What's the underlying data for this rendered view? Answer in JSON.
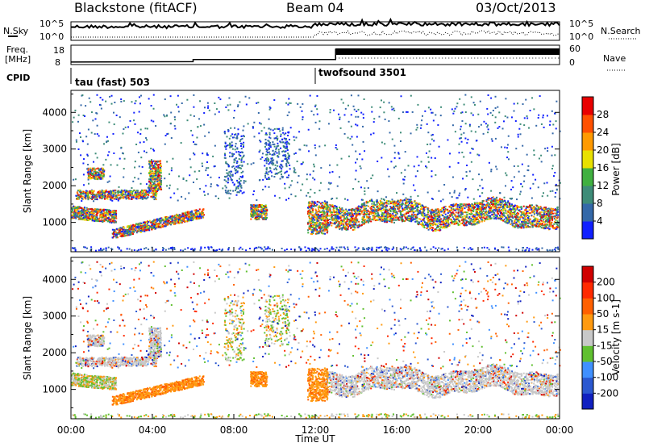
{
  "header": {
    "title": "Blackstone (fitACF)",
    "beam": "Beam 04",
    "date": "03/Oct/2013"
  },
  "noise_panel": {
    "left_label": "N.Sky",
    "right_label": "N.Search",
    "left_ticks": [
      "10^5",
      "10^0"
    ],
    "right_ticks": [
      "10^5",
      "10^0"
    ]
  },
  "freq_panel": {
    "left_label_line1": "Freq.",
    "left_label_line2": "[MHz]",
    "left_ticks": [
      "18",
      "8"
    ],
    "right_label": "Nave",
    "right_ticks": [
      "60",
      "0"
    ]
  },
  "cpid": {
    "label": "CPID",
    "segments": [
      {
        "name": "tau (fast) 503",
        "start_hour": 0
      },
      {
        "name": "twofsound 3501",
        "start_hour": 12
      }
    ]
  },
  "time_axis": {
    "label": "Time UT",
    "ticks": [
      "00:00",
      "04:00",
      "08:00",
      "12:00",
      "16:00",
      "20:00",
      "00:00"
    ]
  },
  "chart_data": [
    {
      "type": "heatmap",
      "panel": "power",
      "ylabel": "Slant Range [km]",
      "x_range_hours": [
        0,
        24
      ],
      "ylim": [
        200,
        4600
      ],
      "y_ticks": [
        1000,
        2000,
        3000,
        4000
      ],
      "colorbar_label": "Power [dB]",
      "colorbar_ticks": [
        4,
        8,
        12,
        16,
        20,
        24,
        28
      ],
      "colorbar_range": [
        0,
        32
      ],
      "colors": [
        "#1020ff",
        "#3468a8",
        "#3e8c78",
        "#40b040",
        "#e8e000",
        "#ff9a00",
        "#ff5000",
        "#e80000"
      ]
    },
    {
      "type": "heatmap",
      "panel": "velocity",
      "ylabel": "Slant Range [km]",
      "x_range_hours": [
        0,
        24
      ],
      "ylim": [
        200,
        4600
      ],
      "y_ticks": [
        1000,
        2000,
        3000,
        4000
      ],
      "colorbar_label": "Velocity [m s-1]",
      "colorbar_ticks": [
        200,
        100,
        50,
        15,
        -15,
        -50,
        -100,
        -200
      ],
      "colors": [
        "#1020c0",
        "#2b58d0",
        "#4090ff",
        "#60c030",
        "#c8c8c8",
        "#ff9a10",
        "#ff6000",
        "#ff2a00",
        "#d00000"
      ]
    }
  ]
}
